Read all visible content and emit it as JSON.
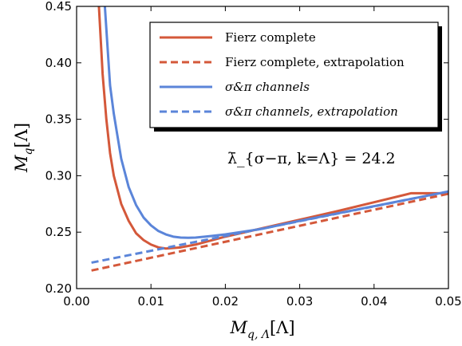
{
  "chart_data": {
    "type": "line",
    "title": "",
    "xlabel": "M_{q,Λ}[Λ]",
    "ylabel": "M_q[Λ]",
    "xlim": [
      0.0,
      0.05
    ],
    "ylim": [
      0.2,
      0.45
    ],
    "xticks": [
      "0.00",
      "0.01",
      "0.02",
      "0.03",
      "0.04",
      "0.05"
    ],
    "yticks": [
      "0.20",
      "0.25",
      "0.30",
      "0.35",
      "0.40",
      "0.45"
    ],
    "grid": false,
    "legend_position": "top-right",
    "annotation": "λ̄_{σ−π, k=Λ} = 24.2",
    "series": [
      {
        "name": "Fierz complete",
        "color": "#d4583a",
        "style": "solid",
        "x": [
          0.003,
          0.0035,
          0.004,
          0.0045,
          0.005,
          0.006,
          0.007,
          0.008,
          0.009,
          0.01,
          0.011,
          0.012,
          0.014,
          0.016,
          0.02,
          0.025,
          0.03,
          0.035,
          0.04,
          0.045,
          0.05
        ],
        "y": [
          0.45,
          0.39,
          0.35,
          0.32,
          0.3,
          0.275,
          0.26,
          0.249,
          0.243,
          0.239,
          0.2365,
          0.2355,
          0.2365,
          0.239,
          0.246,
          0.2535,
          0.261,
          0.2685,
          0.2765,
          0.2845,
          0.2845
        ]
      },
      {
        "name": "Fierz complete, extrapolation",
        "color": "#d4583a",
        "style": "dashed",
        "x": [
          0.002,
          0.05
        ],
        "y": [
          0.216,
          0.284
        ]
      },
      {
        "name": "σ&π channels",
        "color": "#5b85d9",
        "style": "solid",
        "x": [
          0.0038,
          0.0045,
          0.005,
          0.006,
          0.007,
          0.008,
          0.009,
          0.01,
          0.011,
          0.012,
          0.013,
          0.014,
          0.015,
          0.016,
          0.018,
          0.02,
          0.025,
          0.03,
          0.035,
          0.04,
          0.045,
          0.05
        ],
        "y": [
          0.45,
          0.38,
          0.355,
          0.315,
          0.29,
          0.274,
          0.263,
          0.256,
          0.251,
          0.248,
          0.246,
          0.2452,
          0.245,
          0.2452,
          0.2465,
          0.248,
          0.253,
          0.26,
          0.2665,
          0.273,
          0.2795,
          0.286
        ]
      },
      {
        "name": "σ&π channels, extrapolation",
        "color": "#5b85d9",
        "style": "dashed",
        "x": [
          0.002,
          0.05
        ],
        "y": [
          0.223,
          0.286
        ]
      }
    ]
  }
}
